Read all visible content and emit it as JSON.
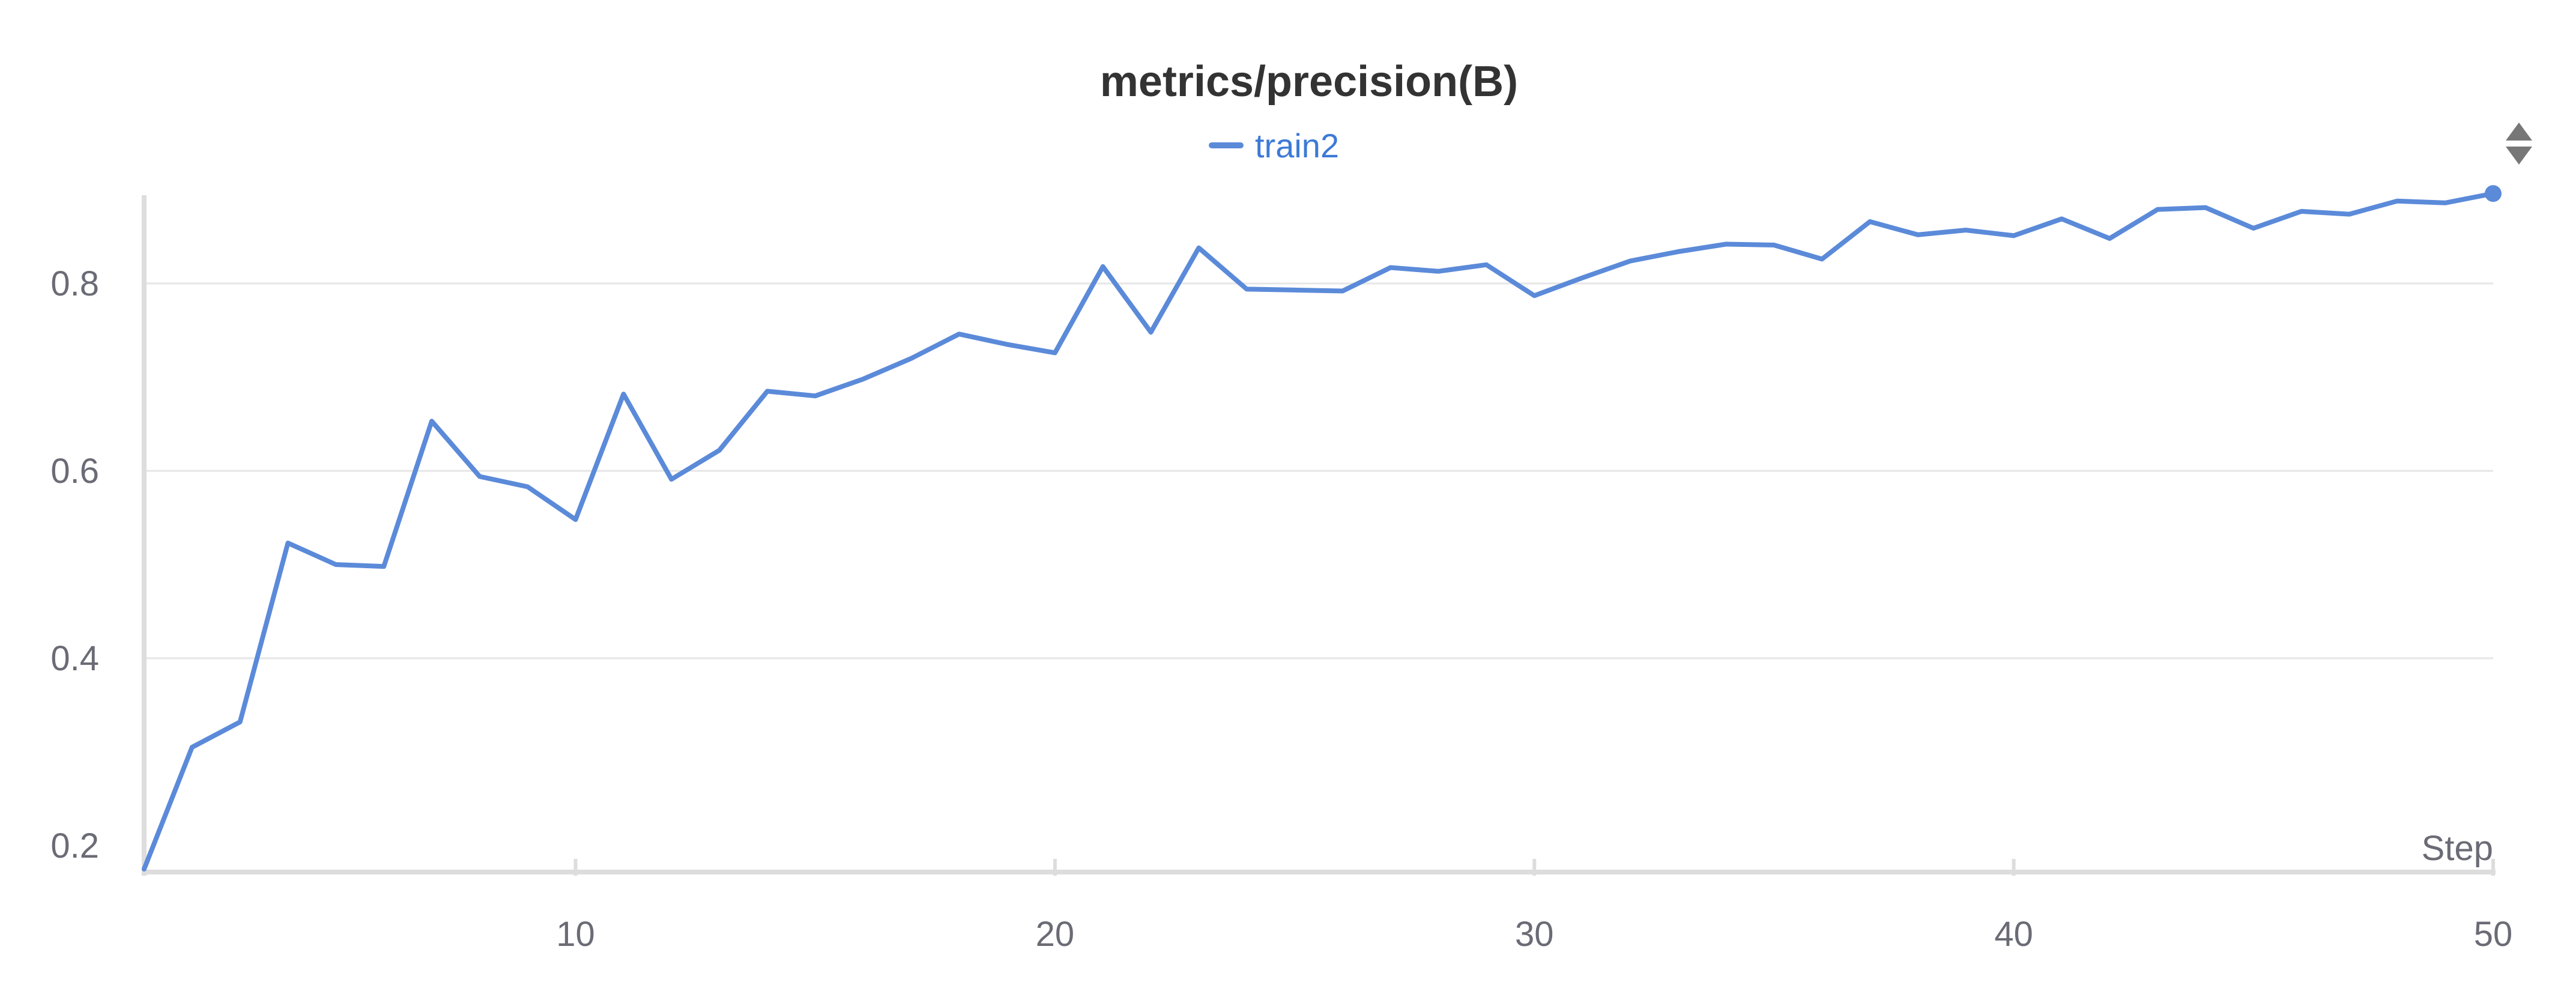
{
  "colors": {
    "series": "#5b8ad9",
    "legend_text": "#3d7ad6",
    "grid": "#e6e6e6",
    "axis": "#dddddd",
    "text": "#333333",
    "tick_text": "#6b6b76",
    "control": "#777777"
  },
  "icons": {
    "panel_control": "sort-triangles-icon"
  },
  "chart_data": {
    "type": "line",
    "title": "metrics/precision(B)",
    "xlabel": "Step",
    "ylabel": "",
    "xlim": [
      1,
      50
    ],
    "ylim": [
      0.2,
      0.9
    ],
    "grid": true,
    "legend_position": "top-center",
    "x_ticks": [
      10,
      20,
      30,
      40,
      50
    ],
    "y_ticks": [
      0.2,
      0.4,
      0.6,
      0.8
    ],
    "x_tick_labels": [
      "10",
      "20",
      "30",
      "40",
      "50"
    ],
    "y_tick_labels": [
      "0.2",
      "0.4",
      "0.6",
      "0.8"
    ],
    "series": [
      {
        "name": "train2",
        "x": [
          1,
          2,
          3,
          4,
          5,
          6,
          7,
          8,
          9,
          10,
          11,
          12,
          13,
          14,
          15,
          16,
          17,
          18,
          19,
          20,
          21,
          22,
          23,
          24,
          25,
          26,
          27,
          28,
          29,
          30,
          31,
          32,
          33,
          34,
          35,
          36,
          37,
          38,
          39,
          40,
          41,
          42,
          43,
          44,
          45,
          46,
          47,
          48,
          49,
          50
        ],
        "values": [
          0.175,
          0.305,
          0.332,
          0.523,
          0.5,
          0.498,
          0.653,
          0.594,
          0.583,
          0.548,
          0.682,
          0.591,
          0.622,
          0.685,
          0.68,
          0.698,
          0.72,
          0.746,
          0.735,
          0.726,
          0.818,
          0.748,
          0.838,
          0.794,
          0.793,
          0.792,
          0.817,
          0.813,
          0.82,
          0.787,
          0.806,
          0.824,
          0.834,
          0.842,
          0.841,
          0.826,
          0.866,
          0.852,
          0.857,
          0.851,
          0.869,
          0.848,
          0.879,
          0.881,
          0.859,
          0.877,
          0.874,
          0.888,
          0.886,
          0.896
        ]
      }
    ]
  }
}
